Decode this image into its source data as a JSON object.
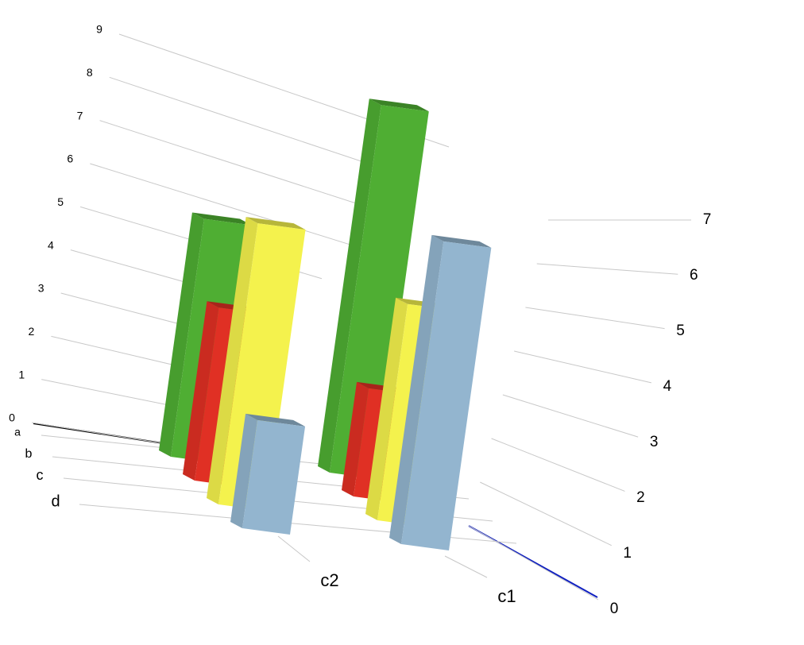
{
  "chart_data": {
    "type": "bar3d",
    "categories": [
      "c2",
      "c1"
    ],
    "series": [
      {
        "name": "a",
        "color": "#4fae33",
        "values": [
          5.5,
          8.5
        ]
      },
      {
        "name": "b",
        "color": "#e03024",
        "values": [
          4,
          2.5
        ]
      },
      {
        "name": "c",
        "color": "#f4f24d",
        "values": [
          6.5,
          5
        ]
      },
      {
        "name": "d",
        "color": "#93b5cf",
        "values": [
          2.5,
          7
        ]
      }
    ],
    "ylim": [
      0,
      9
    ],
    "yticks": [
      0,
      1,
      2,
      3,
      4,
      5,
      6,
      7,
      8,
      9
    ],
    "y2lim": [
      0,
      7
    ],
    "y2ticks": [
      0,
      1,
      2,
      3,
      4,
      5,
      6,
      7
    ]
  }
}
